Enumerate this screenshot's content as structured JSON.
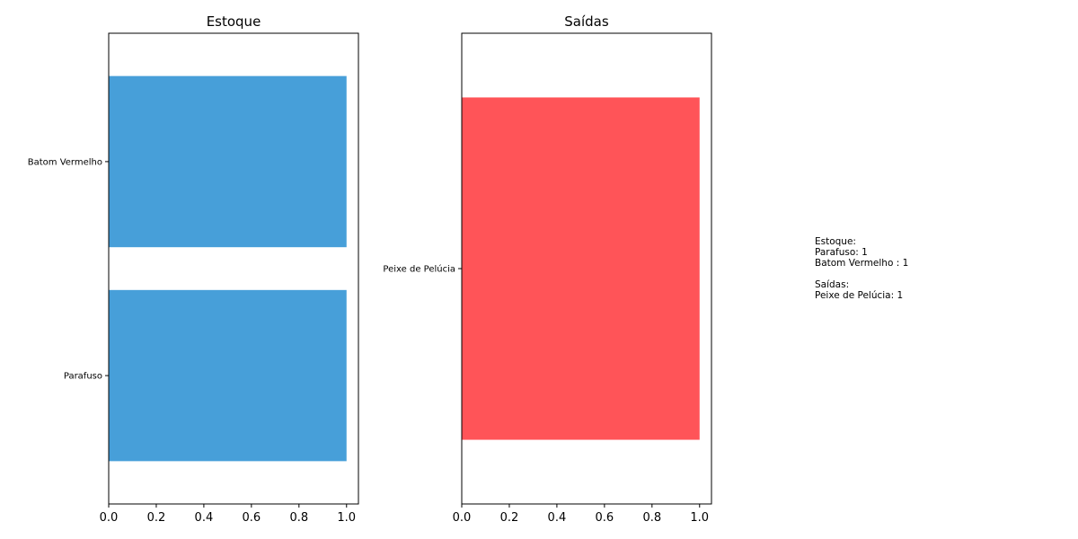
{
  "chart_data": [
    {
      "type": "bar",
      "orientation": "horizontal",
      "title": "Estoque",
      "categories": [
        "Parafuso",
        "Batom Vermelho"
      ],
      "values": [
        1,
        1
      ],
      "color": "#479fd9",
      "xlim": [
        0,
        1.05
      ],
      "xticks": [
        "0.0",
        "0.2",
        "0.4",
        "0.6",
        "0.8",
        "1.0"
      ],
      "xlabel": "",
      "ylabel": "",
      "grid": false
    },
    {
      "type": "bar",
      "orientation": "horizontal",
      "title": "Saídas",
      "categories": [
        "Peixe de Pelúcia"
      ],
      "values": [
        1
      ],
      "color": "#ff5458",
      "xlim": [
        0,
        1.05
      ],
      "xticks": [
        "0.0",
        "0.2",
        "0.4",
        "0.6",
        "0.8",
        "1.0"
      ],
      "xlabel": "",
      "ylabel": "",
      "grid": false
    }
  ],
  "summary": {
    "text": "Estoque:\nParafuso: 1\nBatom Vermelho : 1\n\nSaídas:\nPeixe de Pelúcia: 1"
  }
}
